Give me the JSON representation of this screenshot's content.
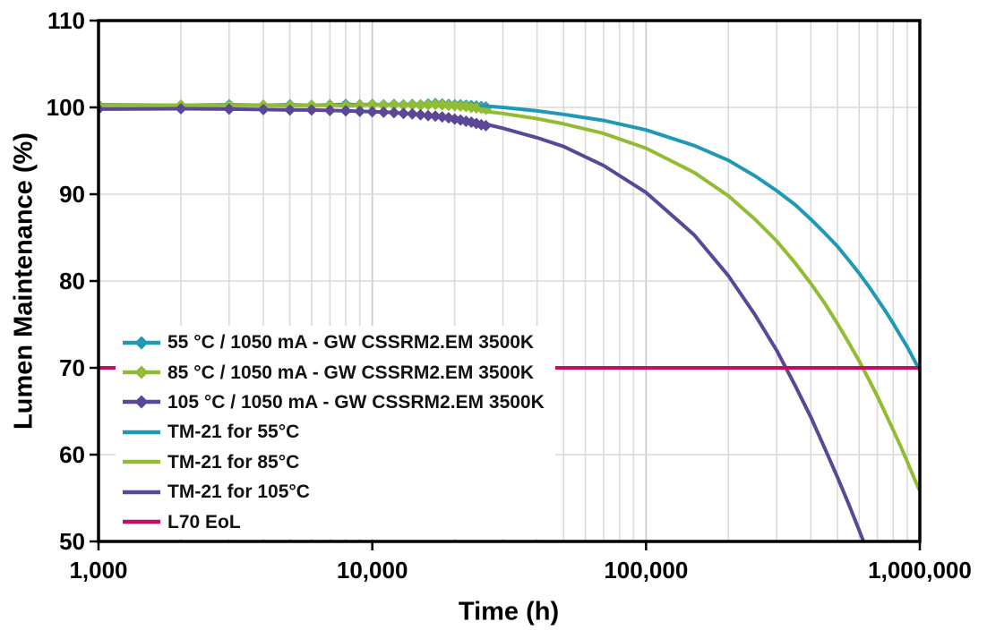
{
  "chart_data": {
    "type": "line",
    "title": "",
    "xlabel": "Time (h)",
    "ylabel": "Lumen Maintenance (%)",
    "x_scale": "log",
    "xlim": [
      1000,
      1000000
    ],
    "ylim": [
      50,
      110
    ],
    "y_ticks": [
      50,
      60,
      70,
      80,
      90,
      100,
      110
    ],
    "y_tick_labels": [
      "50",
      "60",
      "70",
      "80",
      "90",
      "100",
      "110"
    ],
    "x_major_ticks": [
      1000,
      10000,
      100000,
      1000000
    ],
    "x_tick_labels": [
      "1,000",
      "10,000",
      "100,000",
      "1,000,000"
    ],
    "grid": true,
    "grid_minor_color": "#DADADA",
    "grid_major_color": "#C8C8C8",
    "axis_color": "#000000",
    "background_color": "#FFFFFF",
    "legend_position": "inside-left-middle",
    "l70_eol_level": 70,
    "series": [
      {
        "name": "55 °C / 1050 mA - GW CSSRM2.EM 3500K",
        "color": "#2099B4",
        "marker": "diamond",
        "width": 4,
        "x": [
          1000,
          2000,
          3000,
          4000,
          5000,
          6000,
          7000,
          8000,
          9000,
          10000,
          11000,
          12000,
          13000,
          14000,
          15000,
          16000,
          17000,
          18000,
          19000,
          20000,
          21000,
          22000,
          23000,
          24000,
          25000,
          26000
        ],
        "values": [
          100.3,
          100.25,
          100.3,
          100.25,
          100.3,
          100.25,
          100.3,
          100.35,
          100.3,
          100.35,
          100.3,
          100.35,
          100.3,
          100.35,
          100.3,
          100.4,
          100.45,
          100.4,
          100.35,
          100.3,
          100.3,
          100.25,
          100.2,
          100.15,
          100.1,
          100.05
        ]
      },
      {
        "name": "85 °C / 1050 mA - GW CSSRM2.EM 3500K",
        "color": "#92BC33",
        "marker": "diamond",
        "width": 4,
        "x": [
          1000,
          2000,
          3000,
          4000,
          5000,
          6000,
          7000,
          8000,
          9000,
          10000,
          11000,
          12000,
          13000,
          14000,
          15000,
          16000,
          17000,
          18000,
          19000,
          20000,
          21000,
          22000,
          23000,
          24000,
          25000,
          26000
        ],
        "values": [
          100.2,
          100.25,
          100.2,
          100.25,
          100.2,
          100.25,
          100.25,
          100.2,
          100.25,
          100.3,
          100.25,
          100.3,
          100.25,
          100.3,
          100.25,
          100.3,
          100.35,
          100.3,
          100.25,
          100.2,
          100.15,
          100.1,
          100.0,
          99.95,
          99.9,
          99.8
        ]
      },
      {
        "name": "105 °C / 1050 mA - GW CSSRM2.EM 3500K",
        "color": "#5A4896",
        "marker": "diamond",
        "width": 4,
        "x": [
          1000,
          2000,
          3000,
          4000,
          5000,
          6000,
          7000,
          8000,
          9000,
          10000,
          11000,
          12000,
          13000,
          14000,
          15000,
          16000,
          17000,
          18000,
          19000,
          20000,
          21000,
          22000,
          23000,
          24000,
          25000,
          26000
        ],
        "values": [
          99.8,
          99.85,
          99.8,
          99.75,
          99.7,
          99.7,
          99.65,
          99.6,
          99.55,
          99.5,
          99.45,
          99.4,
          99.3,
          99.25,
          99.15,
          99.05,
          99.0,
          98.9,
          98.8,
          98.65,
          98.55,
          98.4,
          98.3,
          98.15,
          98.0,
          97.9
        ]
      },
      {
        "name": "TM-21 for 55°C",
        "color": "#2099B4",
        "marker": "none",
        "width": 4,
        "x": [
          25000,
          30000,
          40000,
          50000,
          70000,
          100000,
          150000,
          200000,
          250000,
          300000,
          350000,
          400000,
          450000,
          500000,
          550000,
          600000,
          650000,
          700000,
          750000,
          800000,
          850000,
          900000,
          950000,
          1000000
        ],
        "values": [
          100.2,
          100.0,
          99.6,
          99.2,
          98.5,
          97.4,
          95.6,
          93.9,
          92.1,
          90.4,
          88.8,
          87.1,
          85.5,
          84.0,
          82.4,
          80.9,
          79.4,
          77.9,
          76.5,
          75.1,
          73.7,
          72.4,
          71.0,
          69.7
        ]
      },
      {
        "name": "TM-21 for 85°C",
        "color": "#92BC33",
        "marker": "none",
        "width": 4,
        "x": [
          25000,
          30000,
          40000,
          50000,
          70000,
          100000,
          150000,
          200000,
          250000,
          300000,
          350000,
          400000,
          450000,
          500000,
          550000,
          600000,
          650000,
          700000,
          750000,
          800000,
          850000,
          900000,
          950000,
          1000000
        ],
        "values": [
          99.6,
          99.3,
          98.7,
          98.1,
          97.0,
          95.3,
          92.5,
          89.8,
          87.1,
          84.6,
          82.1,
          79.7,
          77.4,
          75.1,
          72.9,
          70.8,
          68.7,
          66.7,
          64.7,
          62.8,
          61.0,
          59.2,
          57.4,
          55.8
        ]
      },
      {
        "name": "TM-21 for 105°C",
        "color": "#5A4896",
        "marker": "none",
        "width": 4,
        "x": [
          25000,
          30000,
          40000,
          50000,
          70000,
          100000,
          150000,
          200000,
          250000,
          300000,
          350000,
          400000,
          450000,
          500000,
          550000,
          600000,
          650000
        ],
        "values": [
          98.2,
          97.6,
          96.5,
          95.5,
          93.3,
          90.2,
          85.3,
          80.6,
          76.1,
          72.0,
          68.0,
          64.3,
          60.7,
          57.4,
          54.3,
          51.3,
          48.5
        ]
      },
      {
        "name": "L70 EoL",
        "color": "#C20F63",
        "marker": "none",
        "width": 4,
        "x": [
          1000,
          1000000
        ],
        "values": [
          70,
          70
        ]
      }
    ]
  }
}
